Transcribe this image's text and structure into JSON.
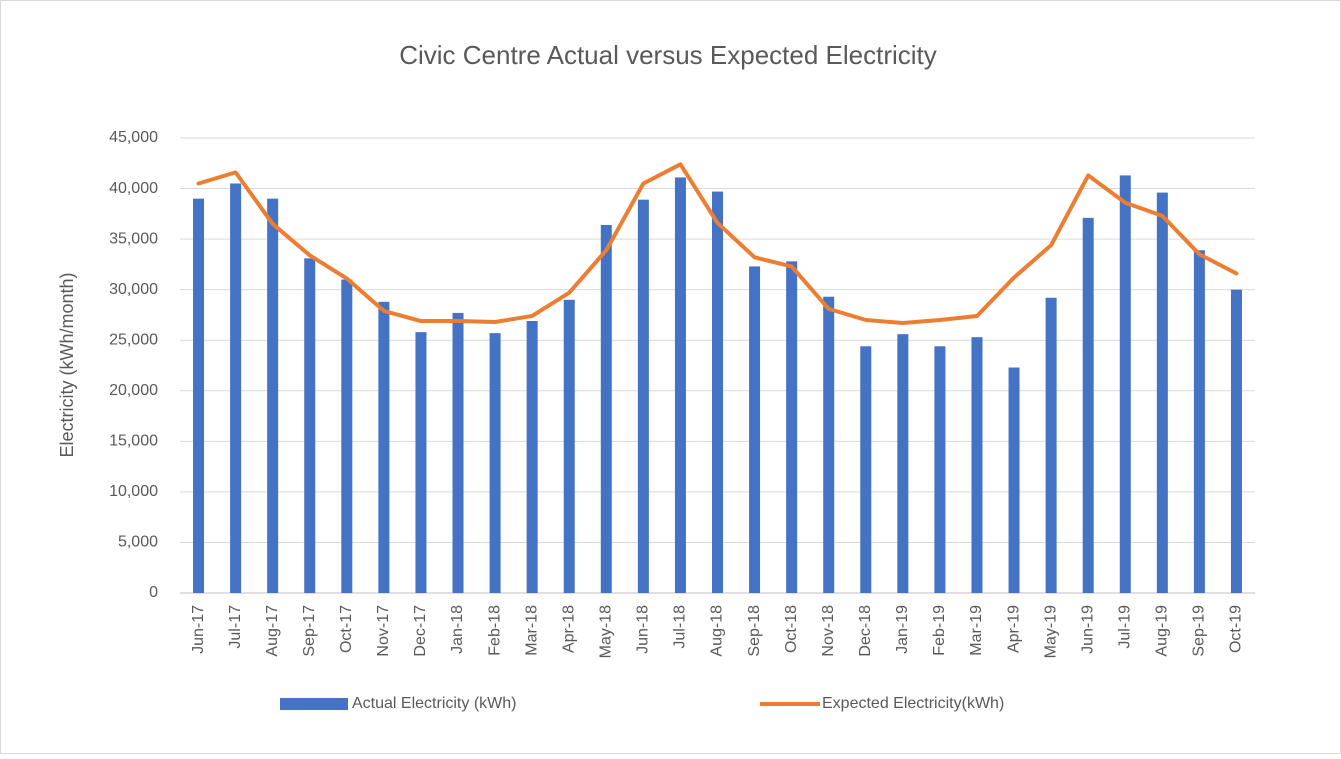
{
  "chart_data": {
    "type": "bar",
    "title": "Civic Centre Actual versus Expected Electricity",
    "y_label": "Electricity (kWh/month)",
    "categories": [
      "Jun-17",
      "Jul-17",
      "Aug-17",
      "Sep-17",
      "Oct-17",
      "Nov-17",
      "Dec-17",
      "Jan-18",
      "Feb-18",
      "Mar-18",
      "Apr-18",
      "May-18",
      "Jun-18",
      "Jul-18",
      "Aug-18",
      "Sep-18",
      "Oct-18",
      "Nov-18",
      "Dec-18",
      "Jan-19",
      "Feb-19",
      "Mar-19",
      "Apr-19",
      "May-19",
      "Jun-19",
      "Jul-19",
      "Aug-19",
      "Sep-19",
      "Oct-19"
    ],
    "series": [
      {
        "name": "Actual Electricity (kWh)",
        "type": "bar",
        "color": "#4472c4",
        "values": [
          39000,
          40500,
          39000,
          33100,
          31000,
          28800,
          25800,
          27700,
          25700,
          26900,
          29000,
          36400,
          38900,
          41100,
          39700,
          32300,
          32800,
          29300,
          24400,
          25600,
          24400,
          25300,
          22300,
          29200,
          37100,
          41300,
          39600,
          33900,
          30000
        ]
      },
      {
        "name": "Expected Electricity(kWh)",
        "type": "line",
        "color": "#ed7d31",
        "values": [
          40500,
          41600,
          36500,
          33400,
          31100,
          27900,
          26900,
          26900,
          26800,
          27400,
          29700,
          33900,
          40500,
          42400,
          36600,
          33200,
          32300,
          28100,
          27000,
          26700,
          27000,
          27400,
          31200,
          34400,
          41300,
          38600,
          37300,
          33500,
          31600
        ]
      }
    ],
    "ylim": [
      0,
      45000
    ],
    "yticks": [
      0,
      {
        "value": 5000,
        "label": "5,000"
      },
      {
        "value": 10000,
        "label": "10,000"
      },
      {
        "value": 15000,
        "label": "15,000"
      },
      {
        "value": 20000,
        "label": "20,000"
      },
      {
        "value": 25000,
        "label": "25,000"
      },
      {
        "value": 30000,
        "label": "30,000"
      },
      {
        "value": 35000,
        "label": "35,000"
      },
      {
        "value": 40000,
        "label": "40,000"
      },
      {
        "value": 45000,
        "label": "45,000"
      }
    ],
    "grid": true,
    "legend": "bottom"
  }
}
